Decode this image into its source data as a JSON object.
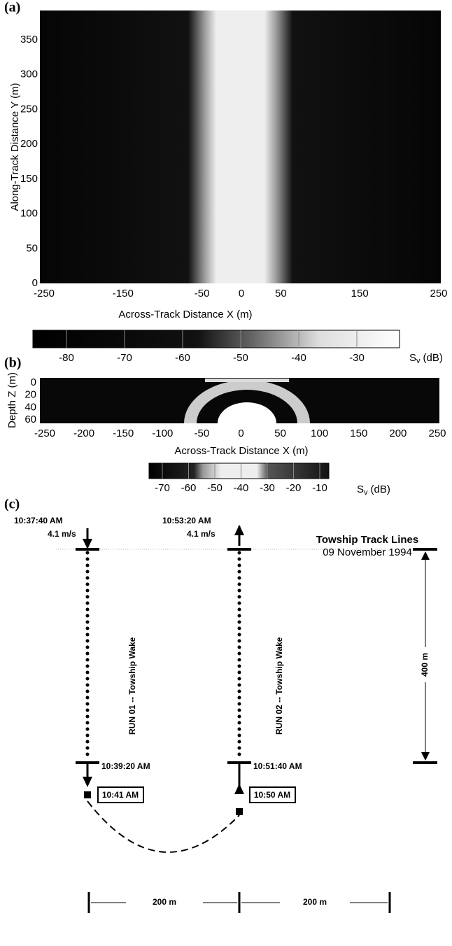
{
  "panel_a": {
    "label": "(a)",
    "x_label": "Across-Track Distance  X  (m)",
    "y_label": "Along-Track Distance  Y  (m)",
    "xticks": [
      -250,
      -150,
      -50,
      0,
      50,
      150,
      250
    ],
    "yticks": [
      0,
      50,
      100,
      150,
      200,
      250,
      300,
      350
    ],
    "colorbar": {
      "ticks": [
        -80,
        -70,
        -60,
        -50,
        -40,
        -30
      ],
      "symbol": "S",
      "subscript": "v",
      "unit": "(dB)"
    }
  },
  "panel_b": {
    "label": "(b)",
    "x_label": "Across-Track Distance X (m)",
    "y_label": "Depth  Z (m)",
    "xticks": [
      -250,
      -200,
      -150,
      -100,
      -50,
      0,
      50,
      100,
      150,
      200,
      250
    ],
    "yticks": [
      0,
      20,
      40,
      60
    ],
    "colorbar": {
      "ticks": [
        -70,
        -60,
        -50,
        -40,
        -30,
        -20,
        -10
      ],
      "symbol": "S",
      "subscript": "v",
      "unit": "(dB)"
    }
  },
  "panel_c": {
    "label": "(c)",
    "title": "Towship Track Lines",
    "date": "09 November 1994",
    "run1": {
      "start": "10:37:40 AM",
      "speed": "4.1 m/s",
      "end": "10:39:20 AM",
      "turn": "10:41 AM",
      "wake": "RUN 01 -- Towship Wake"
    },
    "run2": {
      "start": "10:53:20 AM",
      "speed": "4.1 m/s",
      "end": "10:51:40 AM",
      "turn": "10:50 AM",
      "wake": "RUN 02 -- Towship Wake"
    },
    "length": "400 m",
    "spacing": [
      "200 m",
      "200 m"
    ]
  }
}
